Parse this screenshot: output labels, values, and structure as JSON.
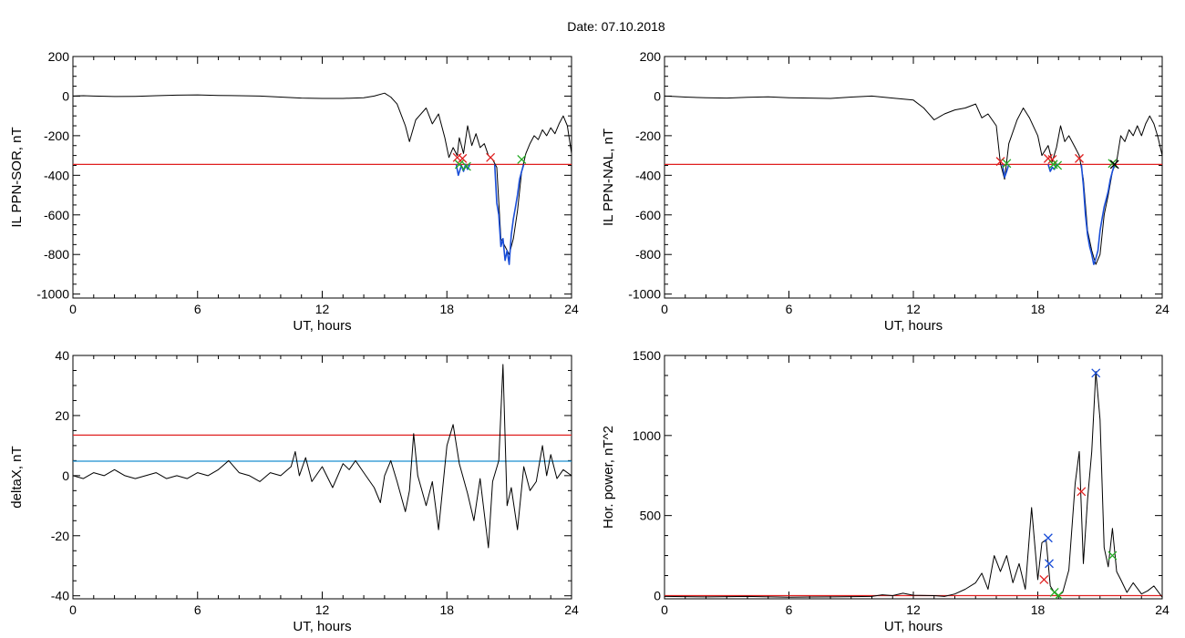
{
  "title": "Date:  07.10.2018",
  "chart_data": [
    {
      "type": "line",
      "ylabel": "IL PPN-SOR, nT",
      "xlabel": "UT, hours",
      "xlim": [
        0,
        24
      ],
      "ylim": [
        -1020,
        200
      ],
      "xticks": [
        0,
        6,
        12,
        18,
        24
      ],
      "yticks": [
        200,
        0,
        -200,
        -400,
        -600,
        -800,
        -1000
      ],
      "hlines": [
        {
          "y": -345,
          "color": "#e02020"
        }
      ],
      "series": [
        {
          "color": "#000000",
          "x": [
            0,
            0.5,
            1,
            2,
            3,
            4,
            5,
            6,
            7,
            8,
            9,
            10,
            11,
            12,
            13,
            14,
            14.5,
            15,
            15.3,
            15.6,
            16,
            16.2,
            16.5,
            17,
            17.3,
            17.6,
            17.9,
            18.1,
            18.3,
            18.5,
            18.6,
            18.8,
            19.0,
            19.2,
            19.4,
            19.6,
            19.8,
            20.0,
            20.2,
            20.4,
            20.6,
            20.8,
            21.0,
            21.2,
            21.4,
            21.6,
            21.8,
            22.0,
            22.2,
            22.4,
            22.6,
            22.8,
            23.0,
            23.2,
            23.4,
            23.6,
            23.8,
            24
          ],
          "y": [
            0,
            2,
            0,
            -2,
            -1,
            2,
            5,
            6,
            3,
            2,
            0,
            -5,
            -10,
            -12,
            -12,
            -8,
            0,
            15,
            -5,
            -40,
            -150,
            -230,
            -120,
            -60,
            -140,
            -90,
            -210,
            -310,
            -260,
            -300,
            -210,
            -290,
            -150,
            -250,
            -190,
            -260,
            -240,
            -300,
            -320,
            -360,
            -720,
            -760,
            -800,
            -720,
            -580,
            -380,
            -290,
            -240,
            -200,
            -220,
            -170,
            -200,
            -160,
            -190,
            -140,
            -100,
            -150,
            -290
          ]
        },
        {
          "color": "#1a4ed8",
          "x": [
            18.45,
            18.55,
            18.7,
            18.8,
            18.9,
            19.0,
            19.1
          ],
          "y": [
            -345,
            -400,
            -350,
            -380,
            -345,
            -370,
            -345
          ]
        },
        {
          "color": "#1a4ed8",
          "x": [
            20.3,
            20.4,
            20.5,
            20.6,
            20.7,
            20.8,
            20.9,
            21.0,
            21.1,
            21.2,
            21.3,
            21.4,
            21.5,
            21.6,
            21.7
          ],
          "y": [
            -345,
            -540,
            -600,
            -760,
            -720,
            -830,
            -780,
            -850,
            -700,
            -620,
            -560,
            -500,
            -420,
            -380,
            -345
          ]
        }
      ],
      "markers": [
        {
          "x": 18.5,
          "y": -310,
          "color": "#e02020"
        },
        {
          "x": 18.75,
          "y": -315,
          "color": "#e02020"
        },
        {
          "x": 18.6,
          "y": -345,
          "color": "#22aa22"
        },
        {
          "x": 18.95,
          "y": -355,
          "color": "#22aa22"
        },
        {
          "x": 20.1,
          "y": -310,
          "color": "#e02020"
        },
        {
          "x": 21.6,
          "y": -320,
          "color": "#22aa22"
        }
      ]
    },
    {
      "type": "line",
      "ylabel": "IL PPN-NAL, nT",
      "xlabel": "UT, hours",
      "xlim": [
        0,
        24
      ],
      "ylim": [
        -1020,
        200
      ],
      "xticks": [
        0,
        6,
        12,
        18,
        24
      ],
      "yticks": [
        200,
        0,
        -200,
        -400,
        -600,
        -800,
        -1000
      ],
      "hlines": [
        {
          "y": -345,
          "color": "#e02020"
        }
      ],
      "series": [
        {
          "color": "#000000",
          "x": [
            0,
            0.5,
            1,
            2,
            3,
            4,
            5,
            6,
            7,
            8,
            9,
            10,
            11,
            12,
            12.5,
            13,
            13.5,
            14,
            14.5,
            15,
            15.3,
            15.6,
            16,
            16.2,
            16.4,
            16.6,
            17,
            17.3,
            17.6,
            18,
            18.2,
            18.5,
            18.7,
            18.9,
            19.1,
            19.3,
            19.5,
            19.8,
            20.0,
            20.2,
            20.4,
            20.6,
            20.8,
            21.0,
            21.2,
            21.4,
            21.6,
            21.8,
            22.0,
            22.2,
            22.4,
            22.6,
            22.8,
            23.0,
            23.2,
            23.4,
            23.6,
            23.8,
            24
          ],
          "y": [
            0,
            -2,
            -5,
            -8,
            -10,
            -6,
            -4,
            -8,
            -10,
            -12,
            -5,
            0,
            -10,
            -20,
            -60,
            -120,
            -90,
            -70,
            -60,
            -40,
            -110,
            -90,
            -150,
            -340,
            -420,
            -240,
            -120,
            -60,
            -110,
            -200,
            -300,
            -250,
            -330,
            -260,
            -150,
            -230,
            -200,
            -260,
            -300,
            -420,
            -680,
            -780,
            -850,
            -800,
            -600,
            -500,
            -380,
            -330,
            -200,
            -230,
            -170,
            -200,
            -150,
            -200,
            -140,
            -100,
            -140,
            -210,
            -300
          ]
        },
        {
          "color": "#1a4ed8",
          "x": [
            16.3,
            16.4,
            16.5,
            16.6
          ],
          "y": [
            -345,
            -410,
            -380,
            -345
          ]
        },
        {
          "color": "#1a4ed8",
          "x": [
            18.5,
            18.6,
            18.7,
            18.8,
            18.9,
            19.0
          ],
          "y": [
            -345,
            -380,
            -360,
            -370,
            -345,
            -345
          ]
        },
        {
          "color": "#1a4ed8",
          "x": [
            20.1,
            20.2,
            20.3,
            20.4,
            20.5,
            20.6,
            20.7,
            20.8,
            20.9,
            21.0,
            21.1,
            21.2,
            21.3,
            21.4,
            21.5,
            21.6,
            21.7
          ],
          "y": [
            -345,
            -450,
            -600,
            -700,
            -760,
            -800,
            -850,
            -820,
            -780,
            -680,
            -620,
            -560,
            -520,
            -480,
            -420,
            -380,
            -345
          ]
        }
      ],
      "markers": [
        {
          "x": 16.2,
          "y": -330,
          "color": "#e02020"
        },
        {
          "x": 16.5,
          "y": -340,
          "color": "#22aa22"
        },
        {
          "x": 18.5,
          "y": -315,
          "color": "#e02020"
        },
        {
          "x": 18.7,
          "y": -320,
          "color": "#e02020"
        },
        {
          "x": 18.75,
          "y": -345,
          "color": "#22aa22"
        },
        {
          "x": 18.95,
          "y": -350,
          "color": "#22aa22"
        },
        {
          "x": 20.0,
          "y": -315,
          "color": "#e02020"
        },
        {
          "x": 21.6,
          "y": -340,
          "color": "#22aa22"
        },
        {
          "x": 21.7,
          "y": -345,
          "color": "#000000"
        }
      ]
    },
    {
      "type": "line",
      "ylabel": "deltaX, nT",
      "xlabel": "UT, hours",
      "xlim": [
        0,
        24
      ],
      "ylim": [
        -41,
        40
      ],
      "xticks": [
        0,
        6,
        12,
        18,
        24
      ],
      "yticks": [
        40,
        20,
        0,
        -20,
        -40
      ],
      "hlines": [
        {
          "y": 13.5,
          "color": "#e02020"
        },
        {
          "y": 4.8,
          "color": "#1a8fd0"
        }
      ],
      "series": [
        {
          "color": "#000000",
          "x": [
            0,
            0.5,
            1,
            1.5,
            2,
            2.5,
            3,
            3.5,
            4,
            4.5,
            5,
            5.5,
            6,
            6.5,
            7,
            7.5,
            8,
            8.5,
            9,
            9.5,
            10,
            10.5,
            10.7,
            10.9,
            11.2,
            11.5,
            12,
            12.5,
            13,
            13.3,
            13.6,
            14,
            14.5,
            14.8,
            15,
            15.3,
            15.6,
            16,
            16.2,
            16.4,
            16.6,
            17,
            17.3,
            17.6,
            18,
            18.3,
            18.6,
            19,
            19.3,
            19.6,
            20,
            20.2,
            20.5,
            20.7,
            20.9,
            21.1,
            21.4,
            21.7,
            22,
            22.3,
            22.6,
            22.8,
            23,
            23.3,
            23.6,
            24
          ],
          "y": [
            0,
            -1,
            1,
            0,
            2,
            0,
            -1,
            0,
            1,
            -1,
            0,
            -1,
            1,
            0,
            2,
            5,
            1,
            0,
            -2,
            1,
            0,
            3,
            8,
            0,
            6,
            -2,
            3,
            -4,
            4,
            2,
            5,
            1,
            -4,
            -9,
            0,
            5,
            -2,
            -12,
            -5,
            14,
            0,
            -10,
            -2,
            -18,
            10,
            17,
            4,
            -6,
            -15,
            -1,
            -24,
            -2,
            5,
            37,
            -10,
            -4,
            -18,
            3,
            -5,
            -2,
            10,
            0,
            7,
            -1,
            2,
            0
          ]
        }
      ],
      "markers": []
    },
    {
      "type": "line",
      "ylabel": "Hor. power, nT^2",
      "xlabel": "UT, hours",
      "xlim": [
        0,
        24
      ],
      "ylim": [
        -20,
        1500
      ],
      "xticks": [
        0,
        6,
        12,
        18,
        24
      ],
      "yticks": [
        1500,
        1000,
        500,
        0
      ],
      "hlines": [
        {
          "y": 0,
          "color": "#e02020"
        }
      ],
      "series": [
        {
          "color": "#000000",
          "x": [
            0,
            2,
            4,
            6,
            8,
            10,
            10.5,
            11,
            11.5,
            12,
            13,
            13.5,
            14,
            14.5,
            15,
            15.3,
            15.6,
            15.9,
            16.2,
            16.5,
            16.8,
            17.1,
            17.4,
            17.7,
            18.0,
            18.2,
            18.4,
            18.6,
            18.8,
            19.0,
            19.2,
            19.5,
            19.8,
            20.0,
            20.2,
            20.4,
            20.6,
            20.8,
            21.0,
            21.2,
            21.4,
            21.6,
            21.8,
            22.0,
            22.3,
            22.6,
            23,
            23.3,
            23.6,
            24
          ],
          "y": [
            -5,
            -8,
            -5,
            -10,
            -8,
            -5,
            5,
            0,
            15,
            2,
            0,
            -5,
            10,
            40,
            80,
            140,
            40,
            250,
            150,
            250,
            80,
            200,
            40,
            550,
            100,
            330,
            350,
            60,
            20,
            0,
            20,
            160,
            700,
            900,
            200,
            600,
            900,
            1400,
            1100,
            300,
            180,
            420,
            150,
            100,
            20,
            80,
            10,
            30,
            60,
            -10
          ]
        }
      ],
      "markers": [
        {
          "x": 18.3,
          "y": 100,
          "color": "#e02020"
        },
        {
          "x": 18.5,
          "y": 360,
          "color": "#1a4ed8"
        },
        {
          "x": 18.55,
          "y": 200,
          "color": "#1a4ed8"
        },
        {
          "x": 18.8,
          "y": 20,
          "color": "#22aa22"
        },
        {
          "x": 19.0,
          "y": 0,
          "color": "#22aa22"
        },
        {
          "x": 20.1,
          "y": 650,
          "color": "#e02020"
        },
        {
          "x": 20.8,
          "y": 1390,
          "color": "#1a4ed8"
        },
        {
          "x": 21.6,
          "y": 250,
          "color": "#22aa22"
        }
      ]
    }
  ]
}
